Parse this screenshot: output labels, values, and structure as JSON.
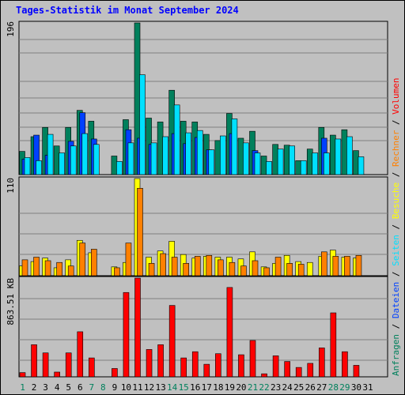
{
  "title": "Tages-Statistik im Monat September 2024",
  "colors": {
    "title": "#0000ff",
    "background": "#c0c0c0",
    "hits": "#00805c",
    "files": "#0040ff",
    "pages": "#00e0ff",
    "visits": "#ffff00",
    "sites": "#ff8000",
    "kbytes": "#ff0000",
    "weekday": "#000000",
    "weekend": "#00805c"
  },
  "right_labels": {
    "top": [
      {
        "text": "Anfragen",
        "color": "#00805c"
      },
      {
        "text": " / ",
        "color": "#000000"
      },
      {
        "text": "Dateien",
        "color": "#0040ff"
      },
      {
        "text": " / ",
        "color": "#000000"
      },
      {
        "text": "Seiten",
        "color": "#00e0ff"
      },
      {
        "text": " / ",
        "color": "#000000"
      },
      {
        "text": "Besuche",
        "color": "#ffff00"
      },
      {
        "text": " / ",
        "color": "#000000"
      },
      {
        "text": "Rechner",
        "color": "#ff8000"
      },
      {
        "text": " / ",
        "color": "#000000"
      },
      {
        "text": "Volumen",
        "color": "#ff0000"
      }
    ]
  },
  "chart_data": [
    {
      "type": "bar",
      "panel": "hits-files-pages",
      "y_max_label": "196",
      "ylim": [
        0,
        196
      ],
      "categories": [
        "1",
        "2",
        "3",
        "4",
        "5",
        "6",
        "7",
        "8",
        "9",
        "10",
        "11",
        "12",
        "13",
        "14",
        "15",
        "16",
        "17",
        "18",
        "19",
        "20",
        "21",
        "22",
        "23",
        "24",
        "25",
        "26",
        "27",
        "28",
        "29",
        "30",
        "31"
      ],
      "series": [
        {
          "name": "Anfragen",
          "values": [
            30,
            49,
            61,
            37,
            61,
            83,
            69,
            0,
            24,
            71,
            196,
            73,
            68,
            109,
            69,
            68,
            52,
            44,
            79,
            47,
            56,
            24,
            39,
            38,
            18,
            33,
            61,
            51,
            58,
            31,
            0
          ]
        },
        {
          "name": "Dateien",
          "values": [
            20,
            51,
            25,
            0,
            43,
            80,
            46,
            0,
            0,
            58,
            47,
            39,
            0,
            53,
            40,
            48,
            32,
            0,
            53,
            0,
            31,
            0,
            0,
            0,
            0,
            0,
            47,
            0,
            0,
            0,
            0
          ]
        },
        {
          "name": "Seiten",
          "values": [
            22,
            18,
            52,
            28,
            37,
            53,
            39,
            0,
            17,
            41,
            129,
            41,
            49,
            90,
            54,
            57,
            32,
            50,
            72,
            41,
            28,
            17,
            33,
            37,
            18,
            28,
            28,
            46,
            49,
            23,
            0
          ]
        }
      ]
    },
    {
      "type": "bar",
      "panel": "visits-sites",
      "y_max_label": "110",
      "ylim": [
        0,
        110
      ],
      "categories": [
        "1",
        "2",
        "3",
        "4",
        "5",
        "6",
        "7",
        "8",
        "9",
        "10",
        "11",
        "12",
        "13",
        "14",
        "15",
        "16",
        "17",
        "18",
        "19",
        "20",
        "21",
        "22",
        "23",
        "24",
        "25",
        "26",
        "27",
        "28",
        "29",
        "30",
        "31"
      ],
      "series": [
        {
          "name": "Besuche",
          "values": [
            11,
            16,
            20,
            9,
            18,
            40,
            26,
            0,
            10,
            15,
            110,
            21,
            28,
            39,
            24,
            20,
            22,
            21,
            21,
            19,
            27,
            10,
            14,
            23,
            16,
            15,
            22,
            29,
            21,
            20,
            0
          ]
        },
        {
          "name": "Rechner",
          "values": [
            18,
            21,
            17,
            15,
            11,
            37,
            30,
            0,
            9,
            37,
            99,
            14,
            25,
            21,
            14,
            22,
            23,
            18,
            15,
            11,
            17,
            9,
            21,
            14,
            13,
            0,
            27,
            22,
            22,
            23,
            0
          ]
        }
      ]
    },
    {
      "type": "bar",
      "panel": "kbytes",
      "y_max_label": "863.51 KB",
      "categories": [
        "1",
        "2",
        "3",
        "4",
        "5",
        "6",
        "7",
        "8",
        "9",
        "10",
        "11",
        "12",
        "13",
        "14",
        "15",
        "16",
        "17",
        "18",
        "19",
        "20",
        "21",
        "22",
        "23",
        "24",
        "25",
        "26",
        "27",
        "28",
        "29",
        "30",
        "31"
      ],
      "series": [
        {
          "name": "Volumen",
          "values": [
            32,
            243,
            181,
            36,
            181,
            341,
            143,
            0,
            63,
            638,
            747,
            207,
            243,
            540,
            143,
            190,
            95,
            175,
            676,
            167,
            275,
            23,
            159,
            116,
            71,
            102,
            219,
            484,
            190,
            87,
            0
          ]
        }
      ]
    }
  ],
  "x_labels": [
    {
      "text": "1",
      "color": "#00805c"
    },
    {
      "text": "2",
      "color": "#000000"
    },
    {
      "text": "3",
      "color": "#000000"
    },
    {
      "text": "4",
      "color": "#000000"
    },
    {
      "text": "5",
      "color": "#000000"
    },
    {
      "text": "6",
      "color": "#000000"
    },
    {
      "text": "7",
      "color": "#00805c"
    },
    {
      "text": "8",
      "color": "#00805c"
    },
    {
      "text": "9",
      "color": "#000000"
    },
    {
      "text": "10",
      "color": "#000000"
    },
    {
      "text": "11",
      "color": "#000000"
    },
    {
      "text": "12",
      "color": "#000000"
    },
    {
      "text": "13",
      "color": "#000000"
    },
    {
      "text": "14",
      "color": "#00805c"
    },
    {
      "text": "15",
      "color": "#00805c"
    },
    {
      "text": "16",
      "color": "#000000"
    },
    {
      "text": "17",
      "color": "#000000"
    },
    {
      "text": "18",
      "color": "#000000"
    },
    {
      "text": "19",
      "color": "#000000"
    },
    {
      "text": "20",
      "color": "#000000"
    },
    {
      "text": "21",
      "color": "#00805c"
    },
    {
      "text": "22",
      "color": "#00805c"
    },
    {
      "text": "23",
      "color": "#000000"
    },
    {
      "text": "24",
      "color": "#000000"
    },
    {
      "text": "25",
      "color": "#000000"
    },
    {
      "text": "26",
      "color": "#000000"
    },
    {
      "text": "27",
      "color": "#000000"
    },
    {
      "text": "28",
      "color": "#00805c"
    },
    {
      "text": "29",
      "color": "#00805c"
    },
    {
      "text": "30",
      "color": "#000000"
    },
    {
      "text": "31",
      "color": "#000000"
    }
  ]
}
